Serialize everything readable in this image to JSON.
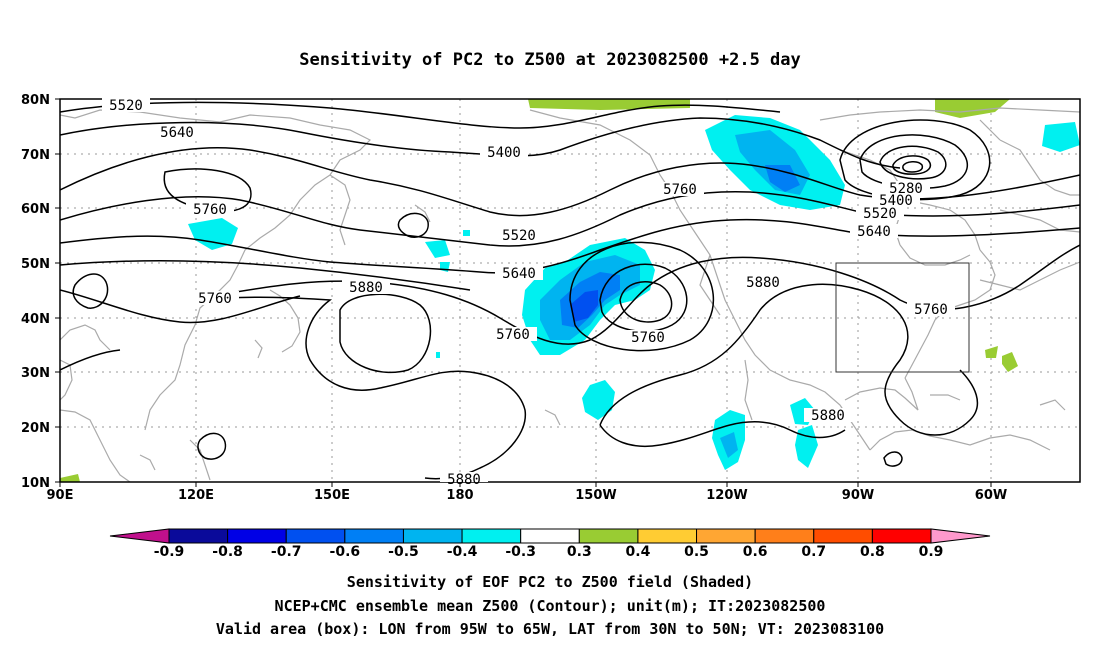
{
  "title": "Sensitivity of PC2 to Z500 at 2023082500 +2.5 day",
  "lat_labels": [
    "80N",
    "70N",
    "60N",
    "50N",
    "40N",
    "30N",
    "20N",
    "10N"
  ],
  "lon_labels": [
    "90E",
    "120E",
    "150E",
    "180",
    "150W",
    "120W",
    "90W",
    "60W"
  ],
  "contour_labels": [
    {
      "text": "5520"
    },
    {
      "text": "5640"
    },
    {
      "text": "5400"
    },
    {
      "text": "5760"
    },
    {
      "text": "5280"
    },
    {
      "text": "5400"
    },
    {
      "text": "5520"
    },
    {
      "text": "5640"
    },
    {
      "text": "5760"
    },
    {
      "text": "5520"
    },
    {
      "text": "5640"
    },
    {
      "text": "5880"
    },
    {
      "text": "5760"
    },
    {
      "text": "5760"
    },
    {
      "text": "5880"
    },
    {
      "text": "5760"
    },
    {
      "text": "5760"
    },
    {
      "text": "5880"
    },
    {
      "text": "5880"
    }
  ],
  "colorbar": {
    "labels": [
      "-0.9",
      "-0.8",
      "-0.7",
      "-0.6",
      "-0.5",
      "-0.4",
      "-0.3",
      "0.3",
      "0.4",
      "0.5",
      "0.6",
      "0.7",
      "0.8",
      "0.9"
    ],
    "colors": [
      "#0a0a9a",
      "#0000e6",
      "#0050f0",
      "#007ff5",
      "#00b4f0",
      "#00f0f0",
      "#ffffff",
      "#99cc33",
      "#ffcc33",
      "#ffa633",
      "#ff7f1a",
      "#ff4d00",
      "#ff0000"
    ],
    "left_arrow_color": "#c0108c",
    "right_arrow_color": "#ff99cc"
  },
  "captions": [
    "Sensitivity of EOF PC2 to Z500 field (Shaded)",
    "NCEP+CMC ensemble mean Z500 (Contour); unit(m); IT:2023082500",
    "Valid area (box): LON from 95W to 65W, LAT from 30N to 50N; VT: 2023083100"
  ]
}
